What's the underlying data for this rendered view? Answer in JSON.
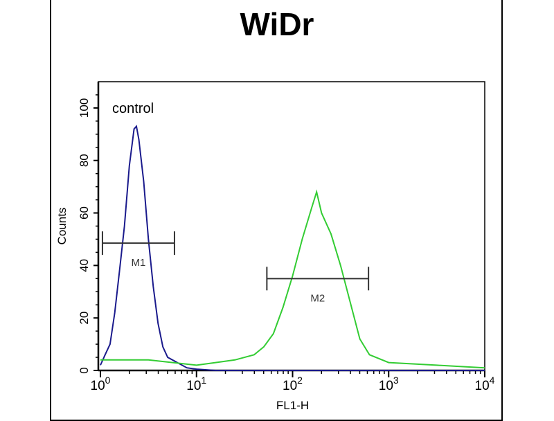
{
  "chart_data": {
    "type": "line",
    "title": "WiDr",
    "xlabel": "FL1-H",
    "ylabel": "Counts",
    "xscale": "log",
    "xlim": [
      1,
      10000
    ],
    "ylim": [
      0,
      110
    ],
    "grid": false,
    "x_ticks": [
      {
        "base": "10",
        "exp": "0"
      },
      {
        "base": "10",
        "exp": "1"
      },
      {
        "base": "10",
        "exp": "2"
      },
      {
        "base": "10",
        "exp": "3"
      },
      {
        "base": "10",
        "exp": "4"
      }
    ],
    "y_ticks": [
      "0",
      "20",
      "40",
      "60",
      "80",
      "100"
    ],
    "y_tick_values": [
      0,
      20,
      40,
      60,
      80,
      100
    ],
    "annotations": [
      {
        "text": "control"
      }
    ],
    "series": [
      {
        "name": "control",
        "color": "#1a1a8c",
        "points": [
          [
            1,
            2
          ],
          [
            1.12,
            6
          ],
          [
            1.26,
            10
          ],
          [
            1.41,
            22
          ],
          [
            1.58,
            38
          ],
          [
            1.78,
            55
          ],
          [
            2.0,
            78
          ],
          [
            2.24,
            92
          ],
          [
            2.37,
            93
          ],
          [
            2.51,
            88
          ],
          [
            2.82,
            72
          ],
          [
            3.16,
            50
          ],
          [
            3.55,
            32
          ],
          [
            3.98,
            18
          ],
          [
            4.47,
            9
          ],
          [
            5.01,
            5
          ],
          [
            6.31,
            3
          ],
          [
            7.94,
            1
          ],
          [
            10,
            0.5
          ],
          [
            15.8,
            0
          ],
          [
            100,
            0
          ],
          [
            10000,
            0
          ]
        ]
      },
      {
        "color": "#33cc33",
        "points": [
          [
            1,
            4
          ],
          [
            3.16,
            4
          ],
          [
            10,
            2
          ],
          [
            15.8,
            3
          ],
          [
            25.1,
            4
          ],
          [
            39.8,
            6
          ],
          [
            50.1,
            9
          ],
          [
            63.1,
            14
          ],
          [
            79.4,
            24
          ],
          [
            100,
            36
          ],
          [
            126,
            50
          ],
          [
            158,
            62
          ],
          [
            178,
            68
          ],
          [
            200,
            60
          ],
          [
            251,
            52
          ],
          [
            316,
            40
          ],
          [
            398,
            26
          ],
          [
            501,
            12
          ],
          [
            631,
            6
          ],
          [
            1000,
            3
          ],
          [
            3162,
            2
          ],
          [
            10000,
            1
          ]
        ]
      }
    ],
    "markers": [
      {
        "label": "M1",
        "x_range": [
          1.05,
          5.9
        ],
        "y": 48.5
      },
      {
        "label": "M2",
        "x_range": [
          54,
          617
        ],
        "y": 35
      }
    ]
  }
}
